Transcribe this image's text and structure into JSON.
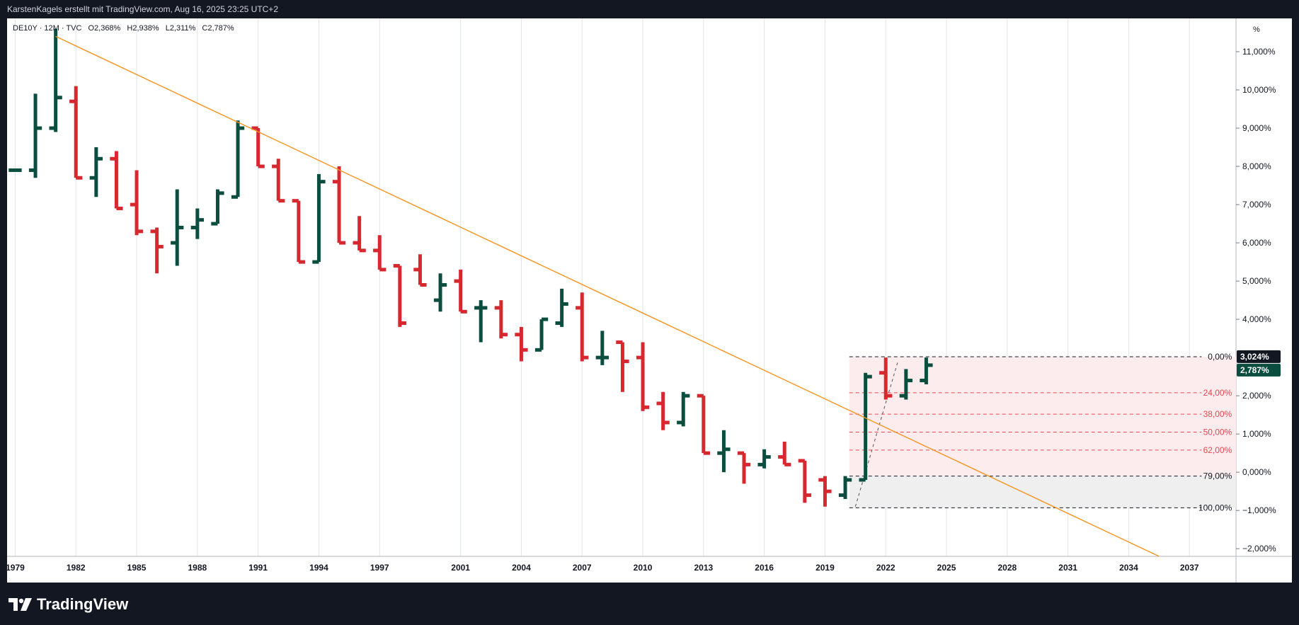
{
  "header": {
    "attribution": "KarstenKagels erstellt mit TradingView.com, Aug 16, 2025 23:25 UTC+2"
  },
  "legend": {
    "symbol": "DE10Y · 12M · TVC",
    "open": "O2,368%",
    "high": "H2,938%",
    "low": "L2,311%",
    "close": "C2,787%"
  },
  "axis_unit": "%",
  "footer": {
    "brand": "TradingView"
  },
  "colors": {
    "up": "#0b4d3f",
    "down": "#d7282f",
    "trendline": "#f7931e",
    "grid": "#e0e3eb",
    "fib_zone_top": "#fdecee",
    "fib_zone_bottom": "#efefef"
  },
  "price_tags": [
    {
      "label": "3,024%",
      "value": 3.024,
      "bg": "#131722"
    },
    {
      "label": "2,787%",
      "value": 2.787,
      "bg": "#0b4d3f"
    }
  ],
  "chart_data": {
    "type": "ohlc",
    "x_ticks": [
      "1979",
      "1982",
      "1985",
      "1988",
      "1991",
      "1994",
      "1997",
      "2001",
      "2004",
      "2007",
      "2010",
      "2013",
      "2016",
      "2019",
      "2022",
      "2025",
      "2028",
      "2031",
      "2034",
      "2037"
    ],
    "y_ticks": [
      {
        "value": 11,
        "label": "11,000%"
      },
      {
        "value": 10,
        "label": "10,000%"
      },
      {
        "value": 9,
        "label": "9,000%"
      },
      {
        "value": 8,
        "label": "8,000%"
      },
      {
        "value": 7,
        "label": "7,000%"
      },
      {
        "value": 6,
        "label": "6,000%"
      },
      {
        "value": 5,
        "label": "5,000%"
      },
      {
        "value": 4,
        "label": "4,000%"
      },
      {
        "value": 2,
        "label": "2,000%"
      },
      {
        "value": 1,
        "label": "1,000%"
      },
      {
        "value": 0,
        "label": "0,000%"
      },
      {
        "value": -1,
        "label": "−1,000%"
      },
      {
        "value": -2,
        "label": "−2,000%"
      }
    ],
    "ylim": [
      -2.2,
      11.5
    ],
    "xlim": [
      1978.6,
      2039.3
    ],
    "bars": [
      {
        "year": 1979,
        "o": 7.9,
        "h": 7.9,
        "l": 7.9,
        "c": 7.9
      },
      {
        "year": 1980,
        "o": 7.9,
        "h": 9.9,
        "l": 7.7,
        "c": 9.0
      },
      {
        "year": 1981,
        "o": 9.0,
        "h": 11.6,
        "l": 8.9,
        "c": 9.8
      },
      {
        "year": 1982,
        "o": 9.7,
        "h": 10.1,
        "l": 7.7,
        "c": 7.7
      },
      {
        "year": 1983,
        "o": 7.7,
        "h": 8.5,
        "l": 7.2,
        "c": 8.2
      },
      {
        "year": 1984,
        "o": 8.2,
        "h": 8.4,
        "l": 6.9,
        "c": 6.9
      },
      {
        "year": 1985,
        "o": 7.0,
        "h": 7.9,
        "l": 6.2,
        "c": 6.3
      },
      {
        "year": 1986,
        "o": 6.3,
        "h": 6.4,
        "l": 5.2,
        "c": 5.9
      },
      {
        "year": 1987,
        "o": 6.0,
        "h": 7.4,
        "l": 5.4,
        "c": 6.4
      },
      {
        "year": 1988,
        "o": 6.4,
        "h": 6.9,
        "l": 6.1,
        "c": 6.6
      },
      {
        "year": 1989,
        "o": 6.5,
        "h": 7.4,
        "l": 6.5,
        "c": 7.3
      },
      {
        "year": 1990,
        "o": 7.2,
        "h": 9.2,
        "l": 7.2,
        "c": 9.0
      },
      {
        "year": 1991,
        "o": 9.0,
        "h": 9.0,
        "l": 8.0,
        "c": 8.0
      },
      {
        "year": 1992,
        "o": 8.0,
        "h": 8.2,
        "l": 7.1,
        "c": 7.1
      },
      {
        "year": 1993,
        "o": 7.1,
        "h": 7.1,
        "l": 5.5,
        "c": 5.5
      },
      {
        "year": 1994,
        "o": 5.5,
        "h": 7.8,
        "l": 5.5,
        "c": 7.6
      },
      {
        "year": 1995,
        "o": 7.6,
        "h": 8.0,
        "l": 6.0,
        "c": 6.0
      },
      {
        "year": 1996,
        "o": 6.0,
        "h": 6.7,
        "l": 5.8,
        "c": 5.8
      },
      {
        "year": 1997,
        "o": 5.8,
        "h": 6.2,
        "l": 5.3,
        "c": 5.3
      },
      {
        "year": 1998,
        "o": 5.4,
        "h": 5.4,
        "l": 3.8,
        "c": 3.9
      },
      {
        "year": 1999,
        "o": 5.3,
        "h": 5.7,
        "l": 4.9,
        "c": 4.9
      },
      {
        "year": 2000,
        "o": 4.5,
        "h": 5.2,
        "l": 4.2,
        "c": 4.9
      },
      {
        "year": 2001,
        "o": 5.0,
        "h": 5.3,
        "l": 4.2,
        "c": 4.2
      },
      {
        "year": 2002,
        "o": 4.3,
        "h": 4.5,
        "l": 3.4,
        "c": 4.3
      },
      {
        "year": 2003,
        "o": 4.3,
        "h": 4.5,
        "l": 3.5,
        "c": 3.6
      },
      {
        "year": 2004,
        "o": 3.6,
        "h": 3.8,
        "l": 2.9,
        "c": 3.2
      },
      {
        "year": 2005,
        "o": 3.2,
        "h": 4.0,
        "l": 3.2,
        "c": 4.0
      },
      {
        "year": 2006,
        "o": 3.9,
        "h": 4.8,
        "l": 3.8,
        "c": 4.4
      },
      {
        "year": 2007,
        "o": 4.3,
        "h": 4.7,
        "l": 2.9,
        "c": 3.0
      },
      {
        "year": 2008,
        "o": 3.0,
        "h": 3.7,
        "l": 2.8,
        "c": 3.0
      },
      {
        "year": 2009,
        "o": 3.4,
        "h": 3.4,
        "l": 2.1,
        "c": 2.9
      },
      {
        "year": 2010,
        "o": 3.0,
        "h": 3.4,
        "l": 1.6,
        "c": 1.7
      },
      {
        "year": 2011,
        "o": 1.8,
        "h": 2.1,
        "l": 1.1,
        "c": 1.3
      },
      {
        "year": 2012,
        "o": 1.3,
        "h": 2.1,
        "l": 1.2,
        "c": 2.0
      },
      {
        "year": 2013,
        "o": 2.0,
        "h": 2.0,
        "l": 0.5,
        "c": 0.5
      },
      {
        "year": 2014,
        "o": 0.5,
        "h": 1.1,
        "l": 0.0,
        "c": 0.6
      },
      {
        "year": 2015,
        "o": 0.5,
        "h": 0.5,
        "l": -0.3,
        "c": 0.2
      },
      {
        "year": 2016,
        "o": 0.2,
        "h": 0.6,
        "l": 0.1,
        "c": 0.4
      },
      {
        "year": 2017,
        "o": 0.4,
        "h": 0.8,
        "l": 0.2,
        "c": 0.2
      },
      {
        "year": 2018,
        "o": 0.3,
        "h": 0.3,
        "l": -0.8,
        "c": -0.6
      },
      {
        "year": 2019,
        "o": -0.2,
        "h": -0.1,
        "l": -0.9,
        "c": -0.5
      },
      {
        "year": 2020,
        "o": -0.6,
        "h": -0.1,
        "l": -0.7,
        "c": -0.2
      },
      {
        "year": 2021,
        "o": -0.2,
        "h": 2.6,
        "l": -0.2,
        "c": 2.5
      },
      {
        "year": 2022,
        "o": 2.6,
        "h": 3.0,
        "l": 1.9,
        "c": 2.0
      },
      {
        "year": 2023,
        "o": 2.0,
        "h": 2.7,
        "l": 1.9,
        "c": 2.4
      },
      {
        "year": 2024,
        "o": 2.4,
        "h": 3.0,
        "l": 2.3,
        "c": 2.8
      }
    ],
    "trendline": {
      "x1": 1981,
      "y1": 11.4,
      "x2": 2035.5,
      "y2": -2.2
    },
    "fib": {
      "x_start": 2020.2,
      "x_end": 2039.3,
      "dashed_leg": {
        "x1": 2020.5,
        "y1": -0.9,
        "x2": 2022.6,
        "y2": 2.9
      },
      "levels": [
        {
          "label": "0,00%",
          "value": 3.02,
          "color": "#131722",
          "bold": true
        },
        {
          "label": "24,00%",
          "value": 2.08,
          "color": "#e8454f",
          "bold": false
        },
        {
          "label": "38,00%",
          "value": 1.52,
          "color": "#e8454f",
          "bold": false
        },
        {
          "label": "50,00%",
          "value": 1.05,
          "color": "#e8454f",
          "bold": false
        },
        {
          "label": "62,00%",
          "value": 0.58,
          "color": "#e8454f",
          "bold": false
        },
        {
          "label": "79,00%",
          "value": -0.1,
          "color": "#131722",
          "bold": true
        },
        {
          "label": "100,00%",
          "value": -0.93,
          "color": "#131722",
          "bold": true
        }
      ]
    }
  }
}
